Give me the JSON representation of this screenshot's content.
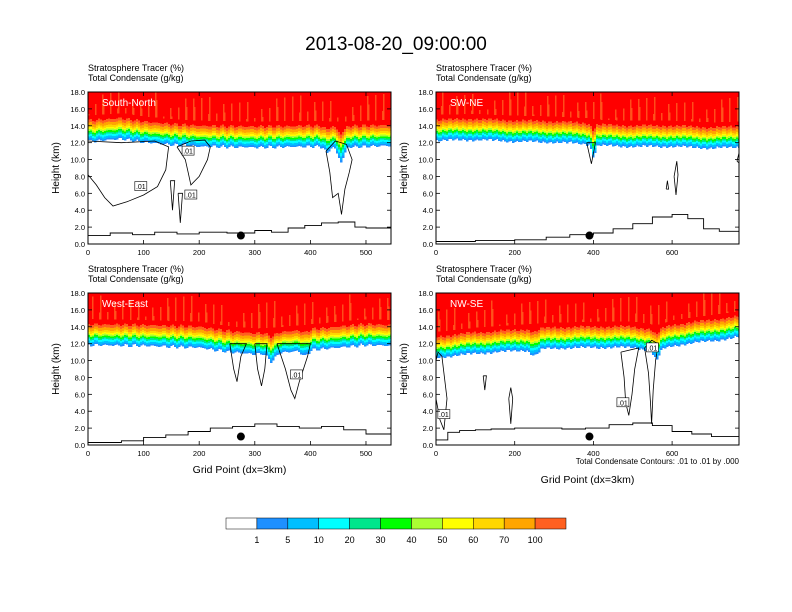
{
  "title": "2013-08-20_09:00:00",
  "colors": {
    "levels": [
      "#ffffff",
      "#1e90ff",
      "#00bfff",
      "#00ffff",
      "#00e68c",
      "#00ff00",
      "#aaff33",
      "#ffff00",
      "#ffd700",
      "#ffa500",
      "#ff6020",
      "#ff0000"
    ],
    "contour": "#000000",
    "marker": "#000000"
  },
  "chart_data": [
    {
      "type": "heatmap",
      "panel_label": "South-North",
      "legend_line1": "Stratosphere Tracer   (%)",
      "legend_line2": "Total Condensate   (g/kg)",
      "ylabel": "Height (km)",
      "xlabel": "",
      "xlim": [
        0,
        545
      ],
      "ylim": [
        0,
        18
      ],
      "xticks": [
        "0",
        "100",
        "200",
        "300",
        "400",
        "500"
      ],
      "yticks": [
        "0.0",
        "2.0",
        "4.0",
        "6.0",
        "8.0",
        "10.0",
        "12.0",
        "14.0",
        "16.0",
        "18.0"
      ],
      "tracer_red_base_km": [
        [
          0,
          14.6
        ],
        [
          60,
          14.9
        ],
        [
          100,
          14.5
        ],
        [
          150,
          14.2
        ],
        [
          200,
          14.0
        ],
        [
          300,
          13.9
        ],
        [
          400,
          14.0
        ],
        [
          450,
          13.9
        ],
        [
          500,
          14.0
        ],
        [
          545,
          14.1
        ]
      ],
      "tracer_dips": [
        {
          "x": 455,
          "depth_km": 1.8,
          "width": 12
        },
        {
          "x": 430,
          "depth_km": 0.8,
          "width": 8
        }
      ],
      "terrain_km": [
        [
          0,
          1.0
        ],
        [
          40,
          1.3
        ],
        [
          80,
          1.1
        ],
        [
          120,
          1.4
        ],
        [
          160,
          1.2
        ],
        [
          200,
          1.4
        ],
        [
          250,
          1.3
        ],
        [
          300,
          1.6
        ],
        [
          330,
          1.4
        ],
        [
          360,
          1.9
        ],
        [
          390,
          2.2
        ],
        [
          420,
          2.5
        ],
        [
          450,
          2.6
        ],
        [
          480,
          2.0
        ],
        [
          500,
          1.9
        ],
        [
          545,
          2.2
        ]
      ],
      "marker_x": 275,
      "contours": [
        [
          [
            0,
            8.2
          ],
          [
            15,
            7.0
          ],
          [
            30,
            5.5
          ],
          [
            45,
            4.5
          ],
          [
            70,
            5.0
          ],
          [
            100,
            5.8
          ],
          [
            125,
            6.8
          ],
          [
            140,
            8.8
          ],
          [
            145,
            11.5
          ],
          [
            120,
            12.2
          ],
          [
            60,
            12.0
          ],
          [
            0,
            12.2
          ]
        ],
        [
          [
            160,
            11.5
          ],
          [
            175,
            10.0
          ],
          [
            180,
            8.5
          ],
          [
            185,
            7.0
          ],
          [
            200,
            8.0
          ],
          [
            215,
            10.0
          ],
          [
            220,
            11.5
          ],
          [
            210,
            12.3
          ],
          [
            185,
            12.2
          ],
          [
            160,
            11.5
          ]
        ],
        [
          [
            148,
            7.5
          ],
          [
            152,
            4.0
          ],
          [
            156,
            7.5
          ],
          [
            148,
            7.5
          ]
        ],
        [
          [
            162,
            6.0
          ],
          [
            166,
            2.5
          ],
          [
            170,
            6.0
          ],
          [
            162,
            6.0
          ]
        ],
        [
          [
            428,
            11.0
          ],
          [
            435,
            8.5
          ],
          [
            440,
            5.5
          ],
          [
            450,
            6.0
          ],
          [
            456,
            3.5
          ],
          [
            462,
            6.5
          ],
          [
            470,
            8.5
          ],
          [
            475,
            10.0
          ],
          [
            465,
            11.8
          ],
          [
            445,
            12.2
          ],
          [
            428,
            11.0
          ]
        ]
      ],
      "contour_labels": [
        {
          "x": 95,
          "y": 6.8,
          "text": ".01"
        },
        {
          "x": 180,
          "y": 11.0,
          "text": ".01"
        },
        {
          "x": 185,
          "y": 5.8,
          "text": ".01"
        }
      ]
    },
    {
      "type": "heatmap",
      "panel_label": "SW-NE",
      "legend_line1": "Stratosphere Tracer   (%)",
      "legend_line2": "Total Condensate   (g/kg)",
      "ylabel": "Height (km)",
      "xlabel": "",
      "xlim": [
        0,
        770
      ],
      "ylim": [
        0,
        18
      ],
      "xticks": [
        "0",
        "200",
        "400",
        "600"
      ],
      "yticks": [
        "0.0",
        "2.0",
        "4.0",
        "6.0",
        "8.0",
        "10.0",
        "12.0",
        "14.0",
        "16.0",
        "18.0"
      ],
      "tracer_red_base_km": [
        [
          0,
          14.7
        ],
        [
          100,
          14.8
        ],
        [
          200,
          14.6
        ],
        [
          300,
          14.5
        ],
        [
          380,
          14.3
        ],
        [
          420,
          14.1
        ],
        [
          500,
          14.0
        ],
        [
          600,
          14.0
        ],
        [
          700,
          13.8
        ],
        [
          770,
          13.9
        ]
      ],
      "tracer_dips": [
        {
          "x": 400,
          "depth_km": 1.5,
          "width": 10
        }
      ],
      "terrain_km": [
        [
          0,
          0.3
        ],
        [
          100,
          0.4
        ],
        [
          200,
          0.5
        ],
        [
          280,
          0.8
        ],
        [
          340,
          1.1
        ],
        [
          400,
          1.3
        ],
        [
          450,
          1.8
        ],
        [
          500,
          2.4
        ],
        [
          550,
          3.2
        ],
        [
          600,
          3.5
        ],
        [
          640,
          3.0
        ],
        [
          680,
          1.8
        ],
        [
          720,
          1.5
        ],
        [
          770,
          1.3
        ]
      ],
      "marker_x": 390,
      "contours": [
        [
          [
            383,
            12.0
          ],
          [
            395,
            9.5
          ],
          [
            405,
            12.0
          ],
          [
            383,
            12.0
          ]
        ],
        [
          [
            585,
            6.5
          ],
          [
            588,
            7.5
          ],
          [
            591,
            6.5
          ],
          [
            585,
            6.5
          ]
        ],
        [
          [
            605,
            8.0
          ],
          [
            610,
            5.8
          ],
          [
            615,
            8.2
          ],
          [
            612,
            9.8
          ],
          [
            605,
            8.0
          ]
        ],
        [
          [
            765,
            9.8
          ],
          [
            770,
            10.8
          ],
          [
            770,
            9.6
          ],
          [
            765,
            9.8
          ]
        ]
      ],
      "contour_labels": []
    },
    {
      "type": "heatmap",
      "panel_label": "West-East",
      "legend_line1": "Stratosphere Tracer   (%)",
      "legend_line2": "Total Condensate   (g/kg)",
      "ylabel": "Height (km)",
      "xlabel": "Grid Point (dx=3km)",
      "xlim": [
        0,
        545
      ],
      "ylim": [
        0,
        18
      ],
      "xticks": [
        "0",
        "100",
        "200",
        "300",
        "400",
        "500"
      ],
      "yticks": [
        "0.0",
        "2.0",
        "4.0",
        "6.0",
        "8.0",
        "10.0",
        "12.0",
        "14.0",
        "16.0",
        "18.0"
      ],
      "tracer_red_base_km": [
        [
          0,
          14.3
        ],
        [
          100,
          14.2
        ],
        [
          200,
          14.0
        ],
        [
          250,
          13.5
        ],
        [
          300,
          13.2
        ],
        [
          350,
          13.4
        ],
        [
          400,
          13.7
        ],
        [
          450,
          14.0
        ],
        [
          500,
          14.3
        ],
        [
          545,
          14.2
        ]
      ],
      "tracer_dips": [
        {
          "x": 330,
          "depth_km": 1.0,
          "width": 15
        },
        {
          "x": 390,
          "depth_km": 0.7,
          "width": 12
        }
      ],
      "terrain_km": [
        [
          0,
          0.3
        ],
        [
          60,
          0.5
        ],
        [
          100,
          0.9
        ],
        [
          140,
          1.2
        ],
        [
          180,
          1.6
        ],
        [
          220,
          2.0
        ],
        [
          260,
          2.2
        ],
        [
          300,
          2.5
        ],
        [
          340,
          2.2
        ],
        [
          380,
          2.0
        ],
        [
          420,
          2.2
        ],
        [
          460,
          1.8
        ],
        [
          500,
          1.3
        ],
        [
          545,
          1.0
        ]
      ],
      "marker_x": 275,
      "contours": [
        [
          [
            255,
            12.0
          ],
          [
            262,
            9.0
          ],
          [
            268,
            7.5
          ],
          [
            275,
            10.5
          ],
          [
            285,
            12.0
          ],
          [
            255,
            12.0
          ]
        ],
        [
          [
            300,
            12.0
          ],
          [
            305,
            9.0
          ],
          [
            312,
            7.0
          ],
          [
            318,
            9.0
          ],
          [
            322,
            12.0
          ],
          [
            300,
            12.0
          ]
        ],
        [
          [
            340,
            12.0
          ],
          [
            355,
            9.0
          ],
          [
            365,
            6.5
          ],
          [
            372,
            5.5
          ],
          [
            380,
            7.5
          ],
          [
            395,
            10.5
          ],
          [
            400,
            12.0
          ],
          [
            340,
            12.0
          ]
        ]
      ],
      "contour_labels": [
        {
          "x": 375,
          "y": 8.3,
          "text": ".01"
        }
      ]
    },
    {
      "type": "heatmap",
      "panel_label": "NW-SE",
      "legend_line1": "Stratosphere Tracer   (%)",
      "legend_line2": "Total Condensate   (g/kg)",
      "ylabel": "Height (km)",
      "xlabel": "Grid Point (dx=3km)",
      "xlim": [
        0,
        770
      ],
      "ylim": [
        0,
        18
      ],
      "xticks": [
        "0",
        "200",
        "400",
        "600"
      ],
      "yticks": [
        "0.0",
        "2.0",
        "4.0",
        "6.0",
        "8.0",
        "10.0",
        "12.0",
        "14.0",
        "16.0",
        "18.0"
      ],
      "tracer_red_base_km": [
        [
          0,
          12.8
        ],
        [
          100,
          13.3
        ],
        [
          200,
          13.6
        ],
        [
          300,
          13.9
        ],
        [
          400,
          14.0
        ],
        [
          500,
          14.0
        ],
        [
          560,
          13.6
        ],
        [
          600,
          14.2
        ],
        [
          700,
          14.8
        ],
        [
          770,
          15.2
        ]
      ],
      "tracer_dips": [
        {
          "x": 250,
          "depth_km": 0.8,
          "width": 20
        },
        {
          "x": 560,
          "depth_km": 1.2,
          "width": 15
        }
      ],
      "terrain_km": [
        [
          0,
          0.6
        ],
        [
          30,
          1.5
        ],
        [
          60,
          1.7
        ],
        [
          100,
          1.8
        ],
        [
          140,
          1.9
        ],
        [
          200,
          2.0
        ],
        [
          260,
          2.0
        ],
        [
          320,
          1.9
        ],
        [
          380,
          2.0
        ],
        [
          440,
          2.4
        ],
        [
          500,
          2.6
        ],
        [
          550,
          2.3
        ],
        [
          600,
          1.6
        ],
        [
          650,
          1.3
        ],
        [
          700,
          1.0
        ],
        [
          770,
          0.5
        ]
      ],
      "marker_x": 390,
      "contours": [
        [
          [
            0,
            5.5
          ],
          [
            10,
            3.0
          ],
          [
            20,
            1.8
          ],
          [
            28,
            5.5
          ],
          [
            15,
            10.5
          ],
          [
            5,
            11.0
          ],
          [
            0,
            10.0
          ]
        ],
        [
          [
            120,
            8.2
          ],
          [
            124,
            6.5
          ],
          [
            128,
            8.2
          ],
          [
            120,
            8.2
          ]
        ],
        [
          [
            185,
            5.5
          ],
          [
            190,
            2.5
          ],
          [
            195,
            5.5
          ],
          [
            190,
            6.8
          ],
          [
            185,
            5.5
          ]
        ],
        [
          [
            470,
            11.0
          ],
          [
            478,
            8.0
          ],
          [
            482,
            5.0
          ],
          [
            490,
            3.5
          ],
          [
            498,
            6.0
          ],
          [
            505,
            9.0
          ],
          [
            515,
            11.5
          ],
          [
            470,
            11.0
          ]
        ],
        [
          [
            530,
            11.5
          ],
          [
            540,
            8.5
          ],
          [
            545,
            5.0
          ],
          [
            548,
            2.5
          ],
          [
            552,
            6.5
          ],
          [
            558,
            10.0
          ],
          [
            565,
            12.0
          ],
          [
            548,
            12.4
          ],
          [
            530,
            11.5
          ]
        ]
      ],
      "contour_labels": [
        {
          "x": 20,
          "y": 3.6,
          "text": ".01"
        },
        {
          "x": 475,
          "y": 5.0,
          "text": ".01"
        },
        {
          "x": 550,
          "y": 11.5,
          "text": ".01"
        }
      ]
    }
  ],
  "colorbar": {
    "labels": [
      "1",
      "5",
      "10",
      "20",
      "30",
      "40",
      "50",
      "60",
      "70",
      "100"
    ]
  },
  "footnote": "Total Condensate Contours: .01 to .01 by .000"
}
